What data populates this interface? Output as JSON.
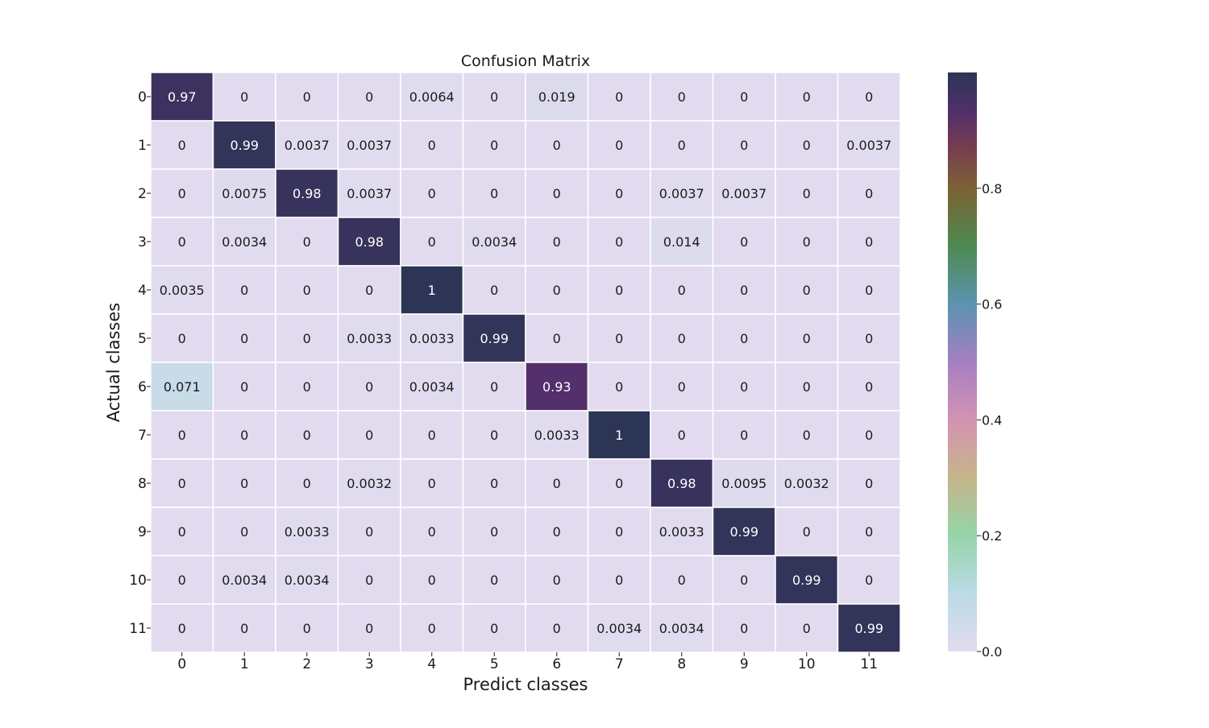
{
  "chart_data": {
    "type": "heatmap",
    "title": "Confusion Matrix",
    "xlabel": "Predict classes",
    "ylabel": "Actual classes",
    "x_categories": [
      "0",
      "1",
      "2",
      "3",
      "4",
      "5",
      "6",
      "7",
      "8",
      "9",
      "10",
      "11"
    ],
    "y_categories": [
      "0",
      "1",
      "2",
      "3",
      "4",
      "5",
      "6",
      "7",
      "8",
      "9",
      "10",
      "11"
    ],
    "values": [
      [
        0.97,
        0,
        0,
        0,
        0.0064,
        0,
        0.019,
        0,
        0,
        0,
        0,
        0
      ],
      [
        0,
        0.99,
        0.0037,
        0.0037,
        0,
        0,
        0,
        0,
        0,
        0,
        0,
        0.0037
      ],
      [
        0,
        0.0075,
        0.98,
        0.0037,
        0,
        0,
        0,
        0,
        0.0037,
        0.0037,
        0,
        0
      ],
      [
        0,
        0.0034,
        0,
        0.98,
        0,
        0.0034,
        0,
        0,
        0.014,
        0,
        0,
        0
      ],
      [
        0.0035,
        0,
        0,
        0,
        1,
        0,
        0,
        0,
        0,
        0,
        0,
        0
      ],
      [
        0,
        0,
        0,
        0.0033,
        0.0033,
        0.99,
        0,
        0,
        0,
        0,
        0,
        0
      ],
      [
        0.071,
        0,
        0,
        0,
        0.0034,
        0,
        0.93,
        0,
        0,
        0,
        0,
        0
      ],
      [
        0,
        0,
        0,
        0,
        0,
        0,
        0.0033,
        1,
        0,
        0,
        0,
        0
      ],
      [
        0,
        0,
        0,
        0.0032,
        0,
        0,
        0,
        0,
        0.98,
        0.0095,
        0.0032,
        0
      ],
      [
        0,
        0,
        0.0033,
        0,
        0,
        0,
        0,
        0,
        0.0033,
        0.99,
        0,
        0
      ],
      [
        0,
        0.0034,
        0.0034,
        0,
        0,
        0,
        0,
        0,
        0,
        0,
        0.99,
        0
      ],
      [
        0,
        0,
        0,
        0,
        0,
        0,
        0,
        0.0034,
        0.0034,
        0,
        0,
        0.99
      ]
    ],
    "colorbar": {
      "range": [
        0,
        1
      ],
      "ticks": [
        0.0,
        0.2,
        0.4,
        0.6,
        0.8
      ],
      "tick_labels": [
        "0.0",
        "0.2",
        "0.4",
        "0.6",
        "0.8"
      ],
      "colormap": "twilight-like (lavender → teal → green → olive → brown → plum → navy)"
    },
    "grid": false,
    "colors": {
      "low": "#e2dbef",
      "high": "#2c3556",
      "cell_border": "#ffffff",
      "text_dark_bg": "#ffffff",
      "text_light_bg": "#1a1a1a"
    }
  }
}
